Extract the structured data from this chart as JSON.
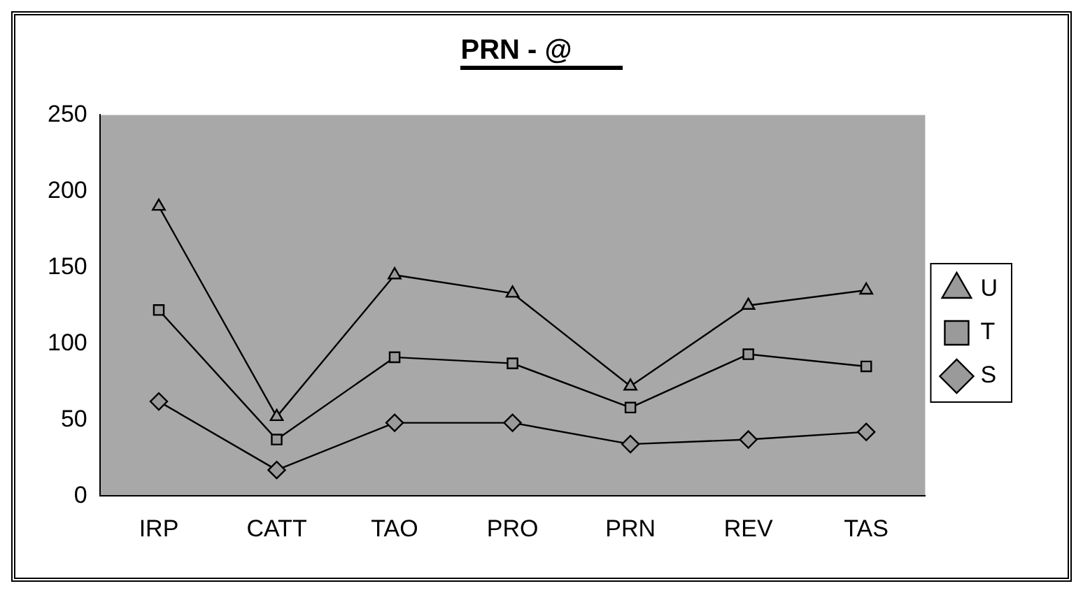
{
  "chart_data": {
    "type": "line",
    "title": "PRN - @",
    "categories": [
      "IRP",
      "CATT",
      "TAO",
      "PRO",
      "PRN",
      "REV",
      "TAS"
    ],
    "series": [
      {
        "name": "U",
        "color": "#000000",
        "marker": "triangle",
        "values": [
          190,
          52,
          145,
          133,
          72,
          125,
          135
        ]
      },
      {
        "name": "T",
        "color": "#000000",
        "marker": "square",
        "values": [
          122,
          37,
          91,
          87,
          58,
          93,
          85
        ]
      },
      {
        "name": "S",
        "color": "#000000",
        "marker": "diamond",
        "values": [
          62,
          17,
          48,
          48,
          34,
          37,
          42
        ]
      }
    ],
    "ylim": [
      0,
      250
    ],
    "yticks": [
      0,
      50,
      100,
      150,
      200,
      250
    ],
    "grid": false,
    "legend": "right",
    "line_style": "solid"
  }
}
